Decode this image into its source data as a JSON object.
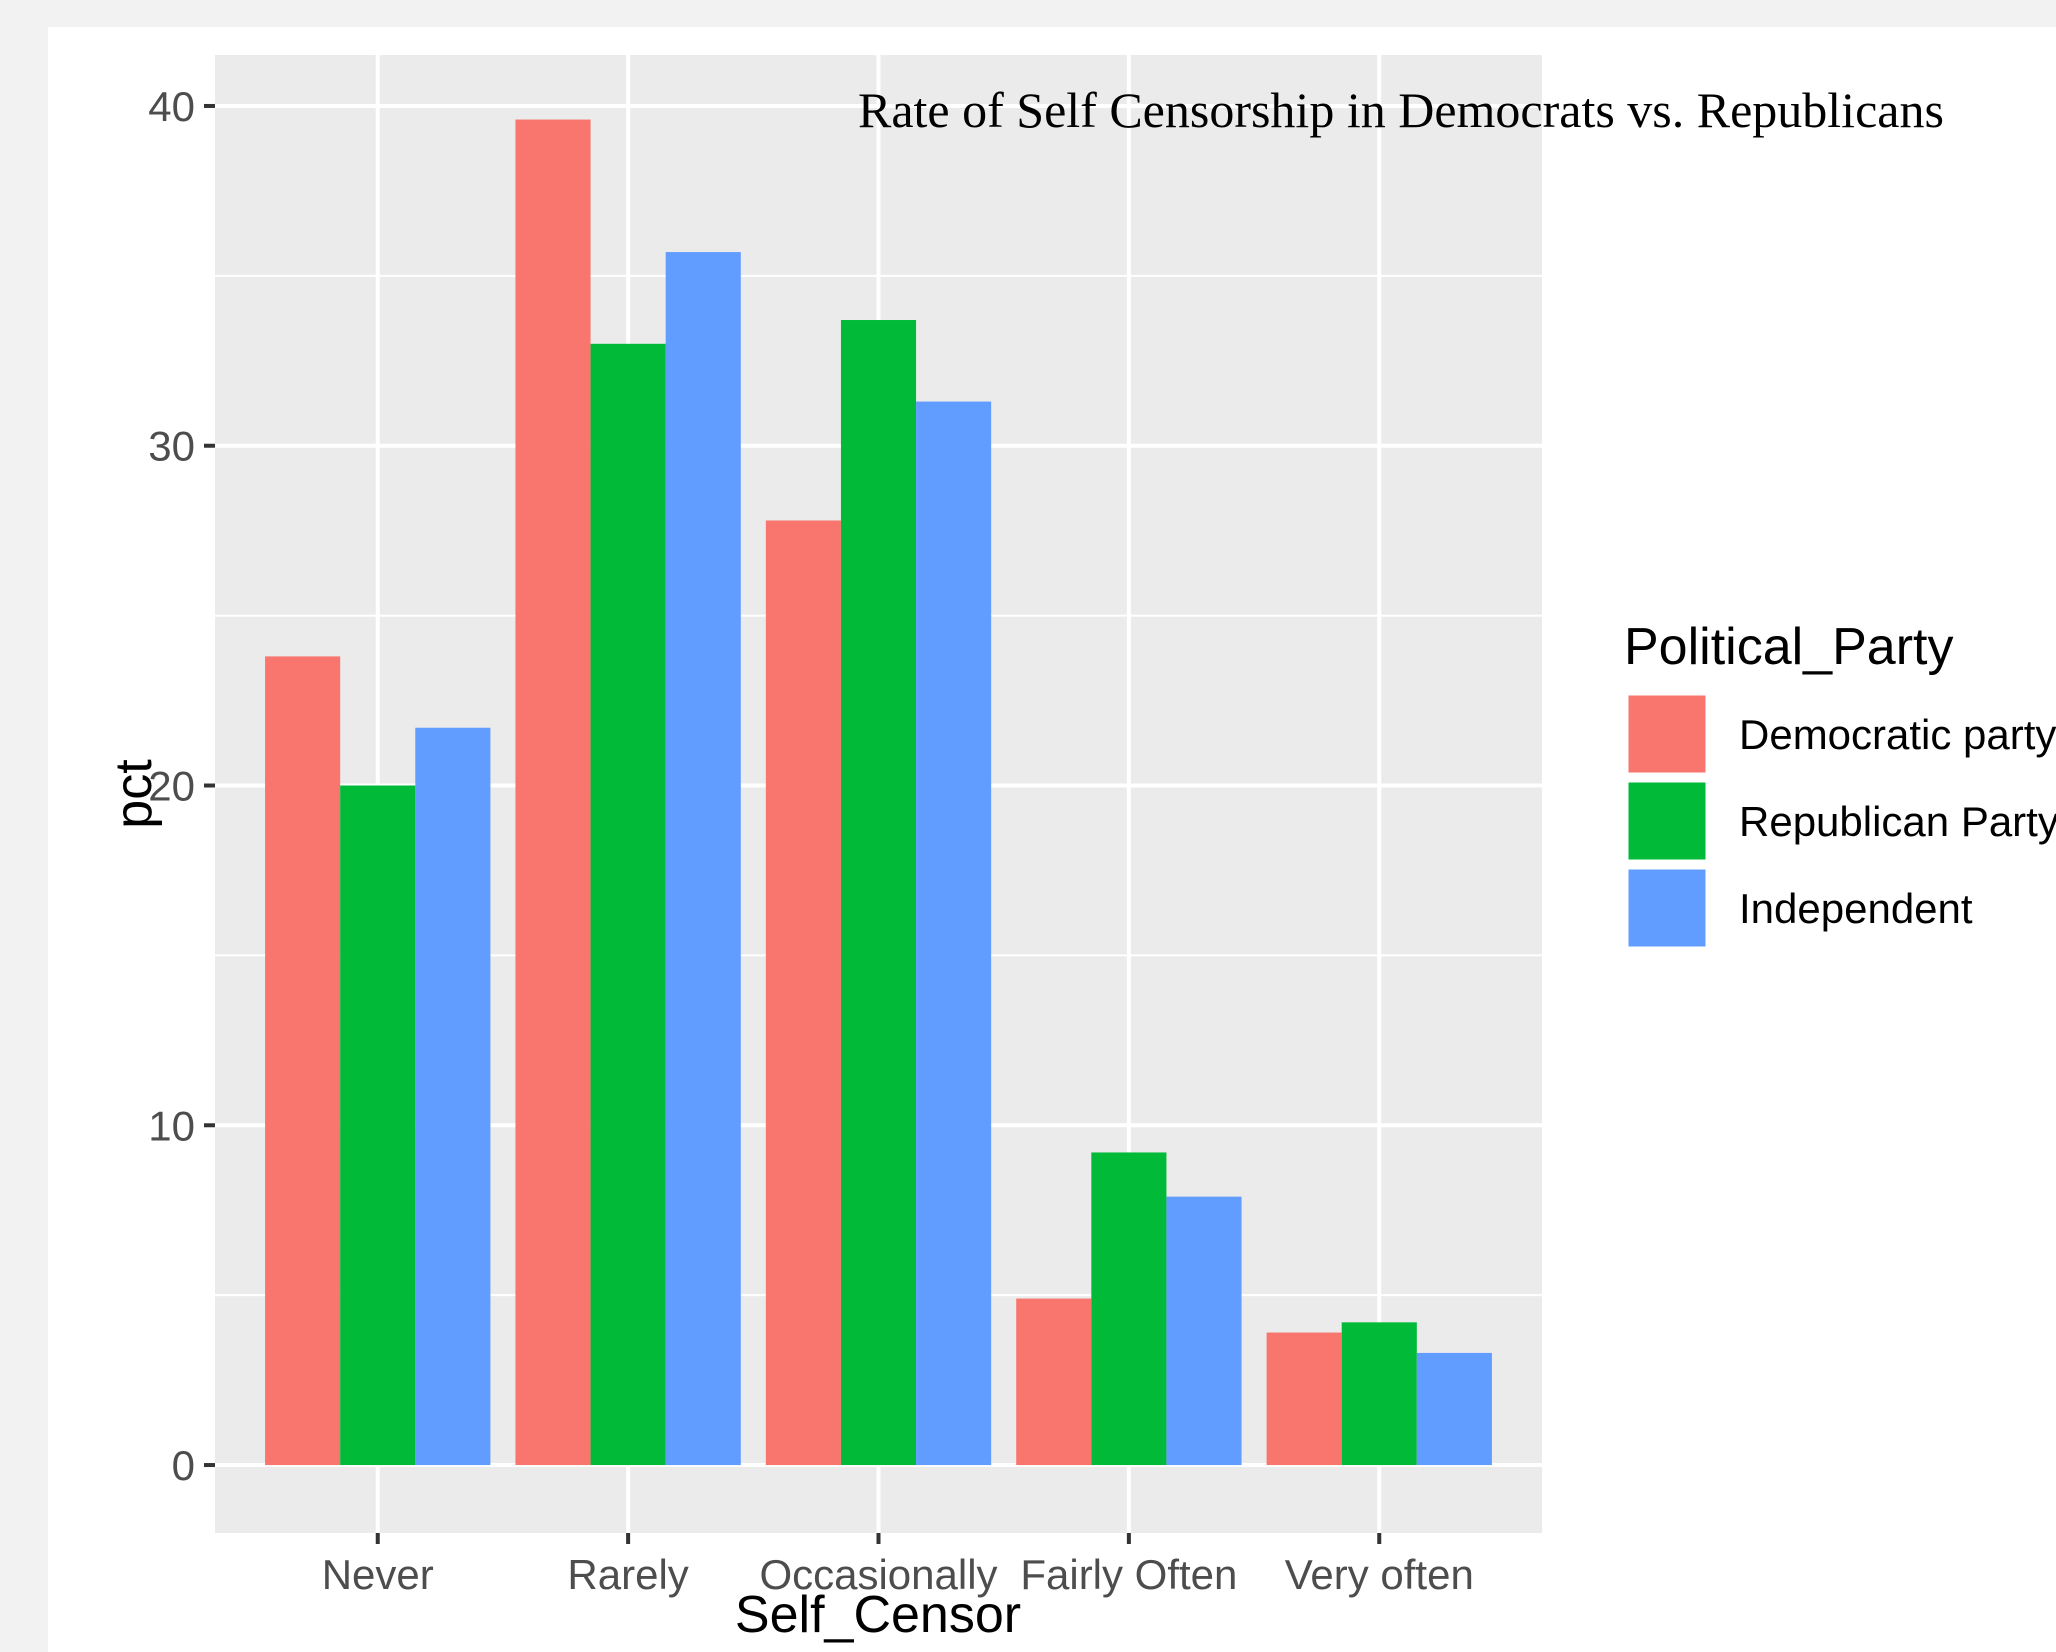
{
  "chart_data": {
    "type": "bar",
    "title": "Rate of Self Censorship in Democrats vs. Republicans",
    "xlabel": "Self_Censor",
    "ylabel": "pct",
    "categories": [
      "Never",
      "Rarely",
      "Occasionally",
      "Fairly Often",
      "Very often"
    ],
    "ylim": [
      -2,
      41.5
    ],
    "yticks": [
      0,
      10,
      20,
      30,
      40
    ],
    "grid": true,
    "legend": {
      "title": "Political_Party",
      "placement": "right"
    },
    "series": [
      {
        "name": "Democratic party",
        "color": "#F8766D",
        "values": [
          23.8,
          39.6,
          27.8,
          4.9,
          3.9
        ]
      },
      {
        "name": "Republican Party",
        "color": "#00BA38",
        "values": [
          20.0,
          33.0,
          33.7,
          9.2,
          4.2
        ]
      },
      {
        "name": "Independent",
        "color": "#619CFF",
        "values": [
          21.7,
          35.7,
          31.3,
          7.9,
          3.3
        ]
      }
    ]
  }
}
